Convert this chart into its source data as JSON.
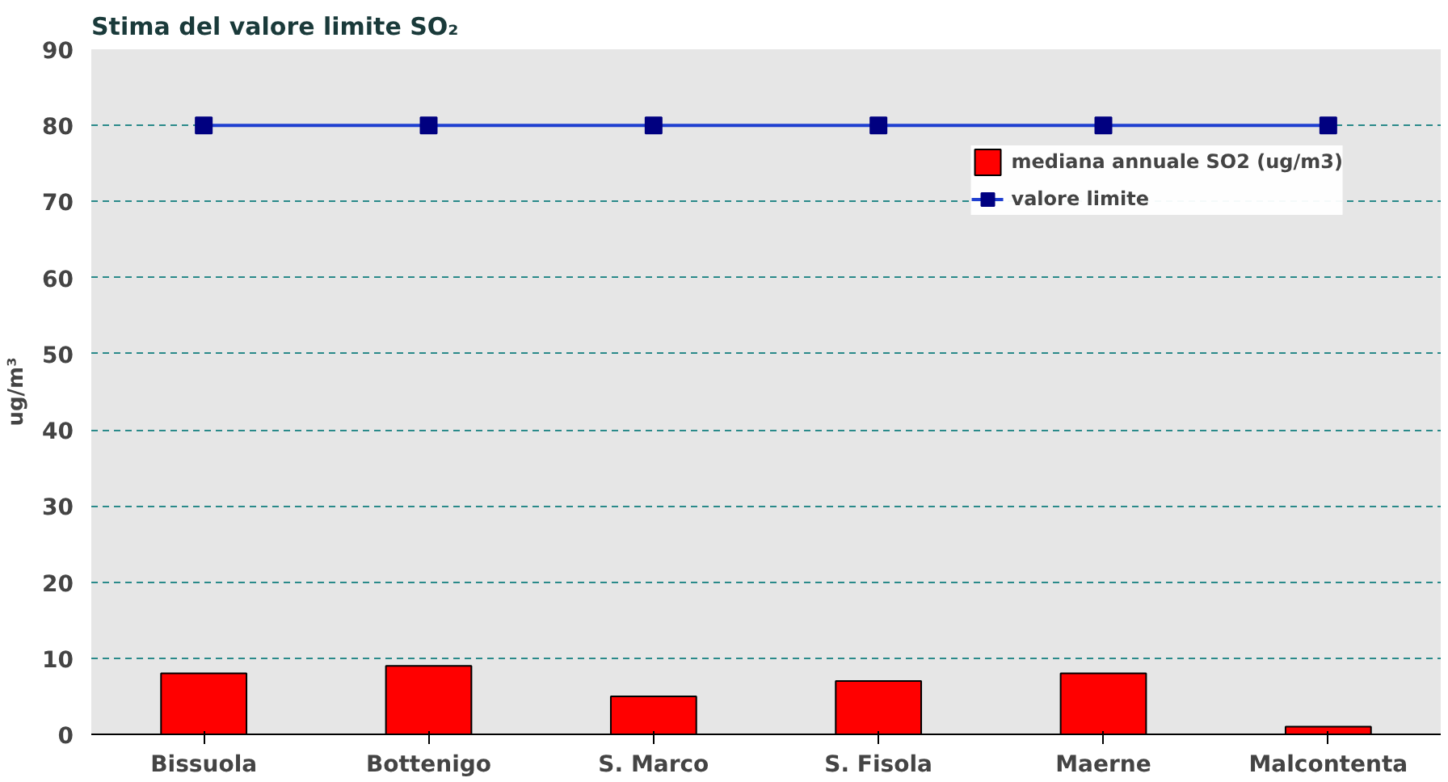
{
  "chart_data": {
    "type": "bar",
    "title": "Stima del valore limite SO₂",
    "ylabel": "ug/m³",
    "categories": [
      "Bissuola",
      "Bottenigo",
      "S. Marco",
      "S. Fisola",
      "Maerne",
      "Malcontenta"
    ],
    "series": [
      {
        "name": "mediana annuale SO2 (ug/m3)",
        "color": "#ff0000",
        "values": [
          8,
          9,
          5,
          7,
          8,
          1
        ]
      },
      {
        "name": "valore limite",
        "type": "line",
        "color": "#1f3fd0",
        "marker": "square",
        "values": [
          80,
          80,
          80,
          80,
          80,
          80
        ]
      }
    ],
    "ylim": [
      0,
      90
    ],
    "yticks": [
      0,
      10,
      20,
      30,
      40,
      50,
      60,
      70,
      80,
      90
    ],
    "grid": "y",
    "legend": "top right"
  }
}
